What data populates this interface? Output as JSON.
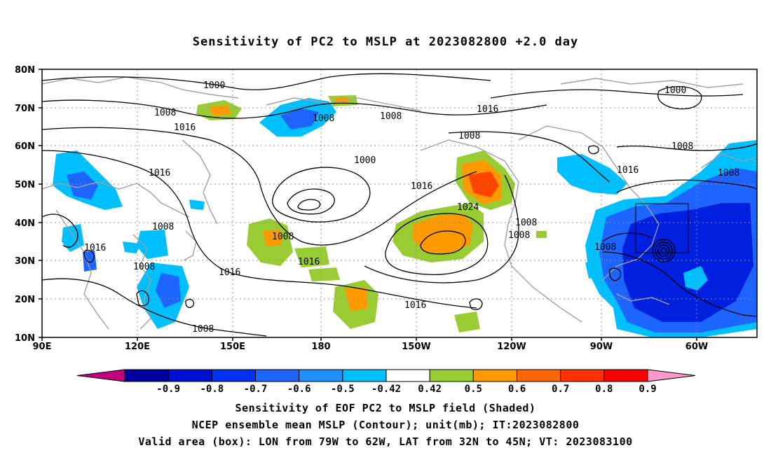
{
  "title": "Sensitivity of PC2 to MSLP at 2023082800 +2.0 day",
  "map": {
    "lat_labels": [
      "80N",
      "70N",
      "60N",
      "50N",
      "40N",
      "30N",
      "20N",
      "10N"
    ],
    "lon_labels": [
      "90E",
      "120E",
      "150E",
      "180",
      "150W",
      "120W",
      "90W",
      "60W"
    ],
    "contour_labels": [
      "1000",
      "1008",
      "1016",
      "1008",
      "1016",
      "1008",
      "1016",
      "1008",
      "1016",
      "1000",
      "1016",
      "1008",
      "1024",
      "1008",
      "1008",
      "1008",
      "1016",
      "1000",
      "1008",
      "1016",
      "1016",
      "1008",
      "1016",
      "1008",
      "1008",
      "1008"
    ],
    "colors": {
      "contour": "#000000",
      "coastline": "#a0a0a0",
      "grid": "#909090",
      "neg_light": "#00bfff",
      "neg_mid": "#1e64ff",
      "neg_dark": "#0020e0",
      "pos_light": "#99cc33",
      "pos_mid": "#ff9900",
      "pos_dark": "#ff4400"
    }
  },
  "colorbar": {
    "labels": [
      "-0.9",
      "-0.8",
      "-0.7",
      "-0.6",
      "-0.5",
      "-0.42",
      "0.42",
      "0.5",
      "0.6",
      "0.7",
      "0.8",
      "0.9"
    ],
    "colors": [
      "#c0007f",
      "#0000a0",
      "#0010d0",
      "#0030f0",
      "#1e64ff",
      "#1e90ff",
      "#00bfff",
      "#ffffff",
      "#99cc33",
      "#ff9900",
      "#ff6600",
      "#ff3300",
      "#ff0000",
      "#ff99cc"
    ]
  },
  "captions": [
    "Sensitivity of EOF PC2 to MSLP field (Shaded)",
    "NCEP ensemble mean MSLP (Contour); unit(mb); IT:2023082800",
    "Valid area (box): LON from 79W to 62W, LAT from 32N to 45N; VT: 2023083100"
  ]
}
